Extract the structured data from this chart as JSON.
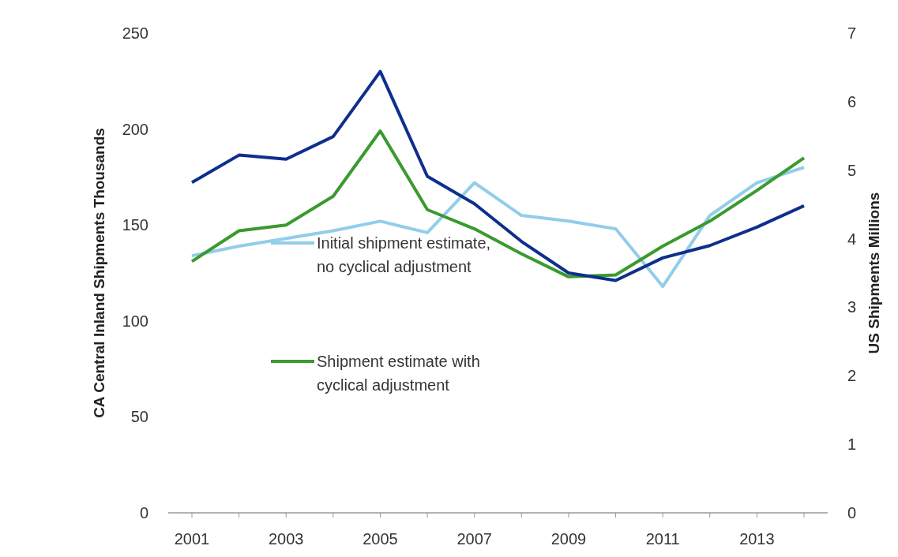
{
  "chart_data": {
    "type": "line",
    "ylabel": "CA Central Inland Shipments  Thousands",
    "y2label": "US Shipments  Millions",
    "categories": [
      "2001",
      null,
      "2003",
      null,
      "2005",
      null,
      "2007",
      null,
      "2009",
      null,
      "2011",
      null,
      "2013",
      null
    ],
    "series": [
      {
        "name": "Initial shipment estimate, no cyclical adjustment",
        "color": "#92cdea",
        "values": [
          134,
          139,
          143,
          147,
          152,
          146,
          172,
          155,
          152,
          148,
          118,
          155,
          172,
          180
        ]
      },
      {
        "name": "Shipment estimate with cyclical adjustment",
        "color": "#3a9a2e",
        "values": [
          131,
          147,
          150,
          165,
          199,
          158,
          148,
          135,
          123,
          124,
          139,
          152,
          168,
          185
        ]
      },
      {
        "color": "#0e2f8c",
        "axis": "y2",
        "values": [
          4.82,
          5.22,
          5.16,
          5.49,
          6.44,
          4.91,
          4.51,
          3.96,
          3.5,
          3.39,
          3.72,
          3.9,
          4.17,
          4.48
        ]
      }
    ],
    "ylim": [
      0,
      250
    ],
    "yticks": [
      0,
      50,
      100,
      150,
      200,
      250
    ],
    "y2lim": [
      0,
      7
    ],
    "y2ticks": [
      0,
      1,
      2,
      3,
      4,
      5,
      6,
      7
    ],
    "grid": false,
    "legend": "center left",
    "marker": "none",
    "line_style": "solid"
  }
}
